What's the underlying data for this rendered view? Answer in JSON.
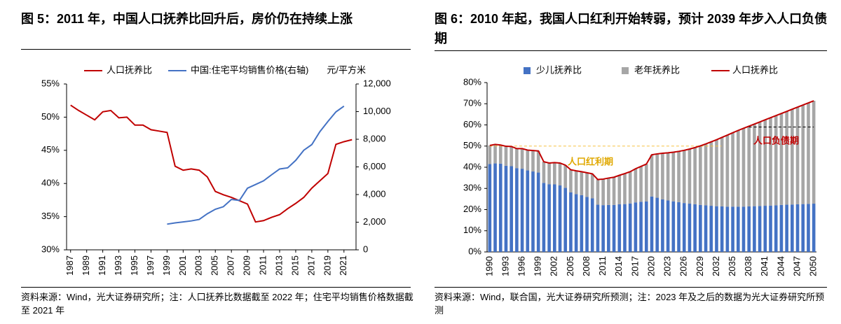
{
  "chart_data": [
    {
      "type": "line",
      "title": "图 5：2011 年，中国人口抚养比回升后，房价仍在持续上涨",
      "y2_unit": "元/平方米",
      "source": "资料来源：Wind，光大证券研究所；注：人口抚养比数据截至 2022 年；住宅平均销售价格数据截至 2021 年",
      "x": [
        1987,
        1988,
        1989,
        1990,
        1991,
        1992,
        1993,
        1994,
        1995,
        1996,
        1997,
        1998,
        1999,
        2000,
        2001,
        2002,
        2003,
        2004,
        2005,
        2006,
        2007,
        2008,
        2009,
        2010,
        2011,
        2012,
        2013,
        2014,
        2015,
        2016,
        2017,
        2018,
        2019,
        2020,
        2021,
        2022
      ],
      "xlim": [
        1986.5,
        2022.5
      ],
      "xticks": [
        1987,
        1989,
        1991,
        1993,
        1995,
        1997,
        1999,
        2001,
        2003,
        2005,
        2007,
        2009,
        2011,
        2013,
        2015,
        2017,
        2019,
        2021
      ],
      "ylim": [
        30,
        55
      ],
      "yticks": [
        {
          "value": 30,
          "label": "30%"
        },
        {
          "value": 35,
          "label": "35%"
        },
        {
          "value": 40,
          "label": "40%"
        },
        {
          "value": 45,
          "label": "45%"
        },
        {
          "value": 50,
          "label": "50%"
        },
        {
          "value": 55,
          "label": "55%"
        }
      ],
      "y2lim": [
        0,
        12000
      ],
      "y2ticks": [
        0,
        {
          "value": 2000,
          "label": "2,000"
        },
        {
          "value": 4000,
          "label": "4,000"
        },
        {
          "value": 6000,
          "label": "6,000"
        },
        {
          "value": 8000,
          "label": "8,000"
        },
        {
          "value": 10000,
          "label": "10,000"
        },
        {
          "value": 12000,
          "label": "12,000"
        }
      ],
      "series": [
        {
          "name": "人口抚养比",
          "color": "#c00000",
          "values": [
            51.8,
            51.0,
            50.3,
            49.6,
            50.8,
            51.0,
            49.9,
            50.0,
            48.8,
            48.8,
            48.1,
            47.9,
            47.7,
            42.6,
            42.0,
            42.2,
            42.0,
            41.0,
            38.8,
            38.3,
            37.9,
            37.4,
            36.9,
            34.2,
            34.4,
            34.9,
            35.3,
            36.2,
            37.0,
            37.9,
            39.3,
            40.4,
            41.5,
            45.9,
            46.3,
            46.6
          ]
        },
        {
          "name": "中国:住宅平均销售价格(右轴)",
          "color": "#4472c4",
          "axis": "y2",
          "values": [
            null,
            null,
            null,
            null,
            null,
            null,
            null,
            null,
            null,
            null,
            null,
            null,
            1857,
            1948,
            2017,
            2092,
            2197,
            2608,
            2937,
            3119,
            3645,
            3576,
            4459,
            4725,
            4993,
            5430,
            5850,
            5933,
            6473,
            7203,
            7614,
            8544,
            9287,
            9980,
            10396,
            null
          ]
        }
      ]
    },
    {
      "type": "bar",
      "stacked": true,
      "title": "图 6：2010 年起，我国人口红利开始转弱，预计 2039 年步入人口负债期",
      "source": "资料来源：Wind，联合国，光大证券研究所预测；注：2023 年及之后的数据为光大证券研究所预测",
      "categories": [
        "1990",
        null,
        null,
        "1993",
        null,
        null,
        "1996",
        null,
        null,
        "1999",
        null,
        null,
        "2002",
        null,
        null,
        "2005",
        null,
        null,
        "2008",
        null,
        null,
        "2011",
        null,
        null,
        "2014",
        null,
        null,
        "2017",
        null,
        null,
        "2020",
        null,
        null,
        "2023",
        null,
        null,
        "2026",
        null,
        null,
        "2029",
        null,
        null,
        "2032",
        null,
        null,
        "2035",
        null,
        null,
        "2038",
        null,
        null,
        "2041",
        null,
        null,
        "2044",
        null,
        null,
        "2047",
        null,
        null,
        "2050"
      ],
      "ylim": [
        0,
        80
      ],
      "yticks": [
        {
          "value": 0,
          "label": "0%"
        },
        {
          "value": 10,
          "label": "10%"
        },
        {
          "value": 20,
          "label": "20%"
        },
        {
          "value": 30,
          "label": "30%"
        },
        {
          "value": 40,
          "label": "40%"
        },
        {
          "value": 50,
          "label": "50%"
        },
        {
          "value": 60,
          "label": "60%"
        },
        {
          "value": 70,
          "label": "70%"
        },
        {
          "value": 80,
          "label": "80%"
        }
      ],
      "reference_lines": [
        {
          "y": 50,
          "color": "#f5c242"
        },
        {
          "y": 59,
          "color": "#000000"
        }
      ],
      "annotations": [
        {
          "text": "人口红利期",
          "color": "#e0a800"
        },
        {
          "text": "人口负债期",
          "color": "#c00000"
        }
      ],
      "series": [
        {
          "name": "少儿抚养比",
          "color": "#4472c4",
          "values": [
            41.5,
            41.8,
            41.7,
            40.7,
            40.5,
            39.6,
            39.3,
            38.5,
            38.0,
            37.5,
            32.6,
            32.0,
            31.9,
            31.4,
            30.3,
            28.1,
            27.3,
            26.8,
            26.0,
            25.3,
            22.3,
            22.1,
            22.2,
            22.2,
            22.5,
            22.6,
            22.9,
            23.4,
            23.7,
            23.8,
            26.2,
            25.6,
            24.8,
            24.3,
            23.9,
            23.5,
            23.1,
            22.8,
            22.5,
            22.2,
            22.0,
            21.8,
            21.6,
            21.5,
            21.4,
            21.4,
            21.4,
            21.4,
            21.5,
            21.6,
            21.7,
            21.8,
            21.9,
            22.0,
            22.2,
            22.3,
            22.4,
            22.5,
            22.6,
            22.7,
            22.8
          ]
        },
        {
          "name": "老年抚养比",
          "color": "#a6a6a6",
          "values": [
            8.8,
            9.0,
            8.8,
            9.2,
            9.3,
            9.2,
            9.5,
            9.6,
            9.9,
            10.2,
            10.0,
            10.0,
            10.3,
            10.6,
            10.7,
            10.7,
            11.0,
            11.1,
            11.4,
            11.6,
            11.9,
            12.3,
            12.7,
            13.1,
            13.7,
            14.4,
            15.0,
            15.9,
            16.7,
            17.7,
            19.7,
            20.7,
            21.8,
            22.5,
            23.2,
            24.0,
            24.9,
            25.8,
            26.8,
            27.9,
            29.0,
            30.2,
            31.4,
            32.6,
            33.8,
            34.9,
            36.0,
            37.0,
            37.9,
            38.8,
            39.7,
            40.6,
            41.5,
            42.4,
            43.2,
            44.1,
            45.0,
            45.9,
            46.8,
            47.7,
            48.6
          ]
        },
        {
          "name": "人口抚养比",
          "color": "#c00000",
          "type": "line",
          "values": [
            50.3,
            50.8,
            50.5,
            49.9,
            49.8,
            48.8,
            48.8,
            48.1,
            47.9,
            47.7,
            42.6,
            42.0,
            42.2,
            42.0,
            41.0,
            38.8,
            38.3,
            37.9,
            37.4,
            36.9,
            34.2,
            34.4,
            34.9,
            35.3,
            36.2,
            37.0,
            37.9,
            39.3,
            40.4,
            41.5,
            45.9,
            46.3,
            46.6,
            46.8,
            47.1,
            47.5,
            48.0,
            48.6,
            49.3,
            50.1,
            51.0,
            52.0,
            53.0,
            54.1,
            55.2,
            56.3,
            57.4,
            58.4,
            59.4,
            60.4,
            61.4,
            62.4,
            63.4,
            64.4,
            65.4,
            66.4,
            67.4,
            68.4,
            69.4,
            70.4,
            71.4
          ]
        }
      ]
    }
  ]
}
